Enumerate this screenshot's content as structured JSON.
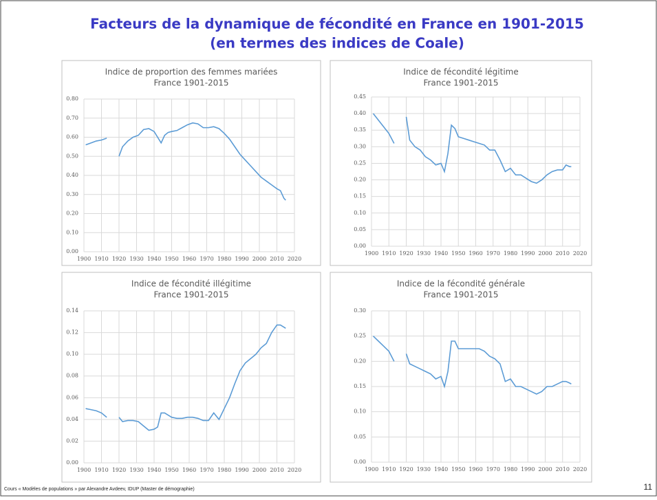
{
  "slide_title": [
    "Facteurs de la dynamique de fécondité en France en 1901-2015",
    "(en termes des indices de Coale)"
  ],
  "footer": "Cours « Modèles de populations » par Alexandre Avdeev, IDUP (Master de démographie)",
  "page_number": "11",
  "chart_data": [
    {
      "type": "line",
      "title": "Indice de proportion des femmes mariées",
      "subtitle": "France 1901-2015",
      "grid": true,
      "xlim": [
        1900,
        2020
      ],
      "xticks": [
        1900,
        1910,
        1920,
        1930,
        1940,
        1950,
        1960,
        1970,
        1980,
        1990,
        2000,
        2010,
        2020
      ],
      "ylim": [
        0,
        0.8
      ],
      "yticks": [
        {
          "value": 0,
          "label": "0.00"
        },
        {
          "value": 0.1,
          "label": "0.10"
        },
        {
          "value": 0.2,
          "label": "0.20"
        },
        {
          "value": 0.3,
          "label": "0.30"
        },
        {
          "value": 0.4,
          "label": "0.40"
        },
        {
          "value": 0.5,
          "label": "0.50"
        },
        {
          "value": 0.6,
          "label": "0.60"
        },
        {
          "value": 0.7,
          "label": "0.70"
        },
        {
          "value": 0.8,
          "label": "0.80"
        }
      ],
      "series": [
        {
          "color": "#5b9bd5",
          "x": [
            1901,
            1904,
            1907,
            1910,
            1913,
            1916,
            1920,
            1922,
            1925,
            1928,
            1931,
            1934,
            1937,
            1940,
            1942,
            1944,
            1946,
            1948,
            1950,
            1953,
            1956,
            1959,
            1962,
            1965,
            1968,
            1971,
            1974,
            1977,
            1980,
            1983,
            1986,
            1989,
            1992,
            1995,
            1998,
            2001,
            2004,
            2007,
            2010,
            2012,
            2014,
            2015
          ],
          "values": [
            0.56,
            0.57,
            0.58,
            0.585,
            0.595,
            null,
            0.5,
            0.55,
            0.58,
            0.6,
            0.61,
            0.64,
            0.645,
            0.63,
            0.6,
            0.57,
            0.61,
            0.625,
            0.63,
            0.635,
            0.65,
            0.665,
            0.675,
            0.67,
            0.65,
            0.65,
            0.655,
            0.645,
            0.62,
            0.59,
            0.55,
            0.51,
            0.48,
            0.45,
            0.42,
            0.39,
            0.37,
            0.35,
            0.33,
            0.32,
            0.28,
            0.27
          ]
        }
      ]
    },
    {
      "type": "line",
      "title": "Indice de fécondité légitime",
      "subtitle": "France 1901-2015",
      "grid": true,
      "xlim": [
        1900,
        2020
      ],
      "xticks": [
        1900,
        1910,
        1920,
        1930,
        1940,
        1950,
        1960,
        1970,
        1980,
        1990,
        2000,
        2010,
        2020
      ],
      "ylim": [
        0,
        0.45
      ],
      "yticks": [
        {
          "value": 0,
          "label": "0.00"
        },
        0.05,
        {
          "value": 0.1,
          "label": "0.10"
        },
        0.15,
        {
          "value": 0.2,
          "label": "0.20"
        },
        0.25,
        {
          "value": 0.3,
          "label": "0.30"
        },
        0.35,
        {
          "value": 0.4,
          "label": "0.40"
        },
        0.45
      ],
      "series": [
        {
          "color": "#5b9bd5",
          "x": [
            1901,
            1904,
            1907,
            1910,
            1913,
            1916,
            1920,
            1922,
            1925,
            1928,
            1931,
            1934,
            1937,
            1940,
            1942,
            1944,
            1946,
            1948,
            1950,
            1953,
            1956,
            1959,
            1962,
            1965,
            1968,
            1971,
            1974,
            1977,
            1980,
            1983,
            1986,
            1989,
            1992,
            1995,
            1998,
            2001,
            2004,
            2007,
            2010,
            2012,
            2014,
            2015
          ],
          "values": [
            0.4,
            0.38,
            0.36,
            0.34,
            0.31,
            null,
            0.39,
            0.32,
            0.3,
            0.29,
            0.27,
            0.26,
            0.245,
            0.25,
            0.225,
            0.28,
            0.365,
            0.355,
            0.33,
            0.325,
            0.32,
            0.315,
            0.31,
            0.305,
            0.29,
            0.29,
            0.26,
            0.225,
            0.235,
            0.215,
            0.215,
            0.205,
            0.195,
            0.19,
            0.2,
            0.215,
            0.225,
            0.23,
            0.23,
            0.245,
            0.24,
            0.24
          ]
        }
      ]
    },
    {
      "type": "line",
      "title": "Indice de fécondité illégitime",
      "subtitle": "France 1901-2015",
      "grid": true,
      "xlim": [
        1900,
        2020
      ],
      "xticks": [
        1900,
        1910,
        1920,
        1930,
        1940,
        1950,
        1960,
        1970,
        1980,
        1990,
        2000,
        2010,
        2020
      ],
      "ylim": [
        0,
        0.14
      ],
      "yticks": [
        {
          "value": 0,
          "label": "0.00"
        },
        0.02,
        0.04,
        0.06,
        0.08,
        {
          "value": 0.1,
          "label": "0.10"
        },
        0.12,
        0.14
      ],
      "series": [
        {
          "color": "#5b9bd5",
          "x": [
            1901,
            1904,
            1907,
            1910,
            1913,
            1916,
            1920,
            1922,
            1925,
            1928,
            1931,
            1934,
            1937,
            1940,
            1942,
            1944,
            1946,
            1948,
            1950,
            1953,
            1956,
            1959,
            1962,
            1965,
            1968,
            1971,
            1974,
            1977,
            1980,
            1983,
            1986,
            1989,
            1992,
            1995,
            1998,
            2001,
            2004,
            2007,
            2010,
            2012,
            2014,
            2015
          ],
          "values": [
            0.05,
            0.049,
            0.048,
            0.046,
            0.042,
            null,
            0.042,
            0.038,
            0.039,
            0.039,
            0.038,
            0.034,
            0.03,
            0.031,
            0.033,
            0.046,
            0.046,
            0.044,
            0.042,
            0.041,
            0.041,
            0.042,
            0.042,
            0.041,
            0.039,
            0.039,
            0.046,
            0.04,
            0.05,
            0.06,
            0.073,
            0.085,
            0.092,
            0.096,
            0.1,
            0.106,
            0.11,
            0.12,
            0.127,
            0.127,
            0.125,
            0.124
          ]
        }
      ]
    },
    {
      "type": "line",
      "title": "Indice de la fécondité générale",
      "subtitle": "France 1901-2015",
      "grid": true,
      "xlim": [
        1900,
        2020
      ],
      "xticks": [
        1900,
        1910,
        1920,
        1930,
        1940,
        1950,
        1960,
        1970,
        1980,
        1990,
        2000,
        2010,
        2020
      ],
      "ylim": [
        0,
        0.3
      ],
      "yticks": [
        {
          "value": 0,
          "label": "0.00"
        },
        0.05,
        {
          "value": 0.1,
          "label": "0.10"
        },
        0.15,
        {
          "value": 0.2,
          "label": "0.20"
        },
        0.25,
        {
          "value": 0.3,
          "label": "0.30"
        }
      ],
      "series": [
        {
          "color": "#5b9bd5",
          "x": [
            1901,
            1904,
            1907,
            1910,
            1913,
            1916,
            1920,
            1922,
            1925,
            1928,
            1931,
            1934,
            1937,
            1940,
            1942,
            1944,
            1946,
            1948,
            1950,
            1953,
            1956,
            1959,
            1962,
            1965,
            1968,
            1971,
            1974,
            1977,
            1980,
            1983,
            1986,
            1989,
            1992,
            1995,
            1998,
            2001,
            2004,
            2007,
            2010,
            2012,
            2014,
            2015
          ],
          "values": [
            0.25,
            0.24,
            0.23,
            0.22,
            0.2,
            null,
            0.215,
            0.195,
            0.19,
            0.185,
            0.18,
            0.175,
            0.165,
            0.17,
            0.15,
            0.18,
            0.24,
            0.24,
            0.225,
            0.225,
            0.225,
            0.225,
            0.225,
            0.22,
            0.21,
            0.205,
            0.195,
            0.16,
            0.165,
            0.15,
            0.15,
            0.145,
            0.14,
            0.135,
            0.14,
            0.15,
            0.15,
            0.155,
            0.16,
            0.16,
            0.157,
            0.155
          ]
        }
      ]
    }
  ]
}
